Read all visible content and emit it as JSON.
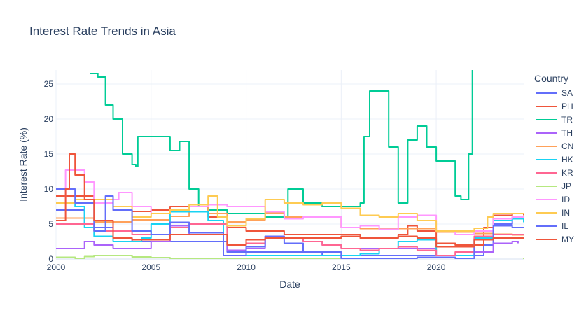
{
  "chart_data": {
    "type": "line",
    "title": "Interest Rate Trends in Asia",
    "xlabel": "Date",
    "ylabel": "Interest Rate (%)",
    "legend_title": "Country",
    "legend_position": "right",
    "grid": true,
    "xlim": [
      2000,
      2024.6
    ],
    "ylim": [
      0,
      27
    ],
    "x_ticks": [
      2000,
      2005,
      2010,
      2015,
      2020
    ],
    "y_ticks": [
      0,
      5,
      10,
      15,
      20,
      25
    ],
    "series": [
      {
        "name": "SA",
        "color": "#636efa",
        "x": [
          2000,
          2001,
          2001.5,
          2002,
          2003,
          2004,
          2005,
          2006,
          2007,
          2008,
          2008.7,
          2009,
          2010,
          2012,
          2014,
          2016,
          2018,
          2020,
          2021,
          2022,
          2022.5,
          2023,
          2024,
          2024.6
        ],
        "y": [
          7,
          7,
          5,
          4.5,
          3,
          2.5,
          2.5,
          2.5,
          2.5,
          2.5,
          2.5,
          1,
          1,
          1,
          0.5,
          0.5,
          0.5,
          0.5,
          0.5,
          0.5,
          2,
          5,
          6,
          6
        ]
      },
      {
        "name": "PH",
        "color": "#ef553b",
        "x": [
          2000,
          2001,
          2002,
          2003,
          2004,
          2005,
          2006,
          2007,
          2008,
          2009,
          2010,
          2012,
          2013,
          2016,
          2017,
          2018,
          2018.5,
          2019,
          2020,
          2021,
          2022,
          2022.5,
          2023,
          2024,
          2024.6
        ],
        "y": [
          9,
          9,
          8,
          7,
          6.8,
          7,
          7.5,
          7.5,
          6,
          4.5,
          4,
          3.5,
          3.5,
          3,
          3,
          3.5,
          4.75,
          4,
          2.25,
          2,
          2,
          4.5,
          6.25,
          6.5,
          6.25
        ]
      },
      {
        "name": "TR",
        "color": "#00cc96",
        "x": [
          2001.8,
          2002.2,
          2002.6,
          2003,
          2003.5,
          2004,
          2004.2,
          2004.3,
          2005,
          2005.5,
          2006,
          2006.5,
          2007,
          2007.5,
          2008,
          2008.5,
          2009,
          2010,
          2011,
          2011.8,
          2012.2,
          2013,
          2014,
          2015,
          2016,
          2016.2,
          2016.5,
          2017,
          2017.5,
          2018,
          2018.5,
          2019,
          2019.5,
          2020,
          2020.5,
          2021,
          2021.3,
          2021.7,
          2021.9
        ],
        "y": [
          26.5,
          26,
          22,
          20,
          15,
          13.5,
          13.2,
          17.5,
          17.5,
          17.5,
          15.5,
          16.8,
          10,
          7.5,
          7,
          7,
          6.5,
          6.5,
          6,
          6,
          10,
          8,
          7.5,
          7.5,
          8,
          17.5,
          24,
          24,
          16,
          8,
          17,
          19,
          16,
          14,
          14,
          9,
          8.5,
          15,
          27
        ]
      },
      {
        "name": "TH",
        "color": "#ab63fa",
        "x": [
          2000,
          2001,
          2001.5,
          2002,
          2003,
          2004,
          2005,
          2006,
          2007,
          2008,
          2009,
          2010,
          2011,
          2012,
          2013,
          2014,
          2015,
          2016,
          2018,
          2019,
          2020,
          2021,
          2022,
          2023,
          2024,
          2024.3
        ],
        "y": [
          1.5,
          1.5,
          2.5,
          2,
          1.5,
          1.5,
          2.5,
          4.75,
          3.5,
          3.5,
          1.25,
          1.5,
          3,
          3,
          2.5,
          2,
          1.5,
          1.5,
          1.5,
          1.5,
          0.5,
          0.5,
          1,
          2.25,
          2.5,
          2.25
        ]
      },
      {
        "name": "CN",
        "color": "#ffa15a",
        "x": [
          2000,
          2001,
          2002,
          2003,
          2004,
          2005,
          2006,
          2007,
          2008,
          2009,
          2010,
          2011,
          2012,
          2013,
          2015,
          2016,
          2019,
          2020,
          2021,
          2022,
          2023,
          2024,
          2024.6
        ],
        "y": [
          5.85,
          5.85,
          5.3,
          5.3,
          5.6,
          5.6,
          6.1,
          7.5,
          6.5,
          5.3,
          5.6,
          6.6,
          6,
          6,
          4.5,
          4.35,
          4.35,
          3.85,
          3.85,
          3.65,
          3.55,
          3.45,
          3.45
        ]
      },
      {
        "name": "HK",
        "color": "#19d3f3",
        "x": [
          2000,
          2001,
          2001.5,
          2002,
          2003,
          2004,
          2004.5,
          2005,
          2006,
          2007,
          2008,
          2008.8,
          2009,
          2015,
          2016,
          2017,
          2018,
          2019,
          2020,
          2021,
          2022,
          2023,
          2024,
          2024.6
        ],
        "y": [
          8,
          7.5,
          4.5,
          3.25,
          2.5,
          2.5,
          3,
          5,
          6.75,
          6.75,
          5.5,
          0.5,
          0.5,
          0.5,
          0.75,
          1.5,
          2.5,
          2.75,
          0.5,
          0.5,
          3,
          5.5,
          5.75,
          5.25
        ]
      },
      {
        "name": "KR",
        "color": "#ff6692",
        "x": [
          2000,
          2001,
          2002,
          2003,
          2004,
          2005,
          2006,
          2007,
          2008,
          2009,
          2010,
          2011,
          2012,
          2013,
          2014,
          2015,
          2016,
          2017,
          2018,
          2019,
          2020,
          2021,
          2022,
          2023,
          2024,
          2024.6
        ],
        "y": [
          5,
          5,
          4,
          4,
          3.5,
          3.5,
          4.5,
          5,
          5,
          2,
          2.25,
          3.25,
          3,
          2.5,
          2,
          1.5,
          1.25,
          1.5,
          1.75,
          1.25,
          0.5,
          1,
          3.25,
          3.5,
          3.5,
          3.5
        ]
      },
      {
        "name": "JP",
        "color": "#b6e880",
        "x": [
          2000,
          2001,
          2001.5,
          2002,
          2003,
          2004,
          2005,
          2006,
          2007,
          2008,
          2009,
          2016,
          2024,
          2024.6
        ],
        "y": [
          0.25,
          0.1,
          0.35,
          0.5,
          0.5,
          0.3,
          0.2,
          0.1,
          0.1,
          0.1,
          0.1,
          -0.1,
          -0.1,
          0.1
        ]
      },
      {
        "name": "ID",
        "color": "#ff97ff",
        "x": [
          2000,
          2000.5,
          2001,
          2001.5,
          2002,
          2003,
          2003.3,
          2004,
          2005,
          2006,
          2007,
          2008,
          2009,
          2010,
          2011,
          2012,
          2013,
          2014,
          2015,
          2016,
          2017,
          2018,
          2019,
          2020,
          2021,
          2022,
          2023,
          2024,
          2024.6
        ],
        "y": [
          8,
          12.7,
          12.7,
          11,
          8,
          8.5,
          9.5,
          7.5,
          6.5,
          7,
          7.5,
          7.75,
          7.5,
          7.5,
          6.75,
          5.75,
          6,
          6,
          4.5,
          4.75,
          4.25,
          6,
          6.25,
          4,
          3.5,
          4,
          5.75,
          6,
          6
        ]
      },
      {
        "name": "IN",
        "color": "#fecb52",
        "x": [
          2000,
          2001,
          2002,
          2003,
          2004,
          2005,
          2006,
          2007,
          2008,
          2008.5,
          2009,
          2010,
          2011,
          2012,
          2013,
          2014,
          2015,
          2016,
          2017,
          2018,
          2019,
          2020,
          2021,
          2022,
          2022.7,
          2023,
          2024,
          2024.6
        ],
        "y": [
          8,
          8.5,
          8.5,
          7.5,
          6,
          6.5,
          7,
          7.75,
          9,
          6,
          4.75,
          5.75,
          8.5,
          8,
          7.75,
          8,
          7.25,
          6.25,
          6,
          6.5,
          5.5,
          4,
          4,
          4.4,
          6,
          6.5,
          6.5,
          6.5
        ]
      },
      {
        "name": "IL",
        "color": "#636efa",
        "x": [
          2000,
          2001,
          2002,
          2002.6,
          2003,
          2004,
          2005,
          2006,
          2007,
          2008,
          2008.8,
          2009,
          2010,
          2011,
          2012,
          2013,
          2015,
          2019,
          2021,
          2022,
          2023,
          2024,
          2024.6
        ],
        "y": [
          10,
          8,
          4,
          9,
          7,
          4,
          3.5,
          5.25,
          3.75,
          3.75,
          0.5,
          0.5,
          1.75,
          3.25,
          2.25,
          1,
          0.1,
          0.25,
          0.1,
          2.75,
          4.75,
          4.5,
          4.5
        ]
      },
      {
        "name": "MY",
        "color": "#ef553b",
        "x": [
          2000,
          2000.5,
          2000.7,
          2001,
          2001.5,
          2002,
          2003,
          2004,
          2005,
          2006,
          2007,
          2008,
          2009,
          2010,
          2011,
          2012,
          2015,
          2016,
          2018,
          2019,
          2020,
          2021,
          2022,
          2023,
          2024,
          2024.6
        ],
        "y": [
          5.5,
          10,
          15,
          12,
          8.5,
          5.5,
          3,
          2.75,
          2.75,
          3.5,
          3.5,
          3.5,
          2,
          2.75,
          3,
          3,
          3.25,
          3,
          3.25,
          3,
          1.75,
          1.75,
          2.75,
          3,
          3,
          3
        ]
      }
    ]
  }
}
